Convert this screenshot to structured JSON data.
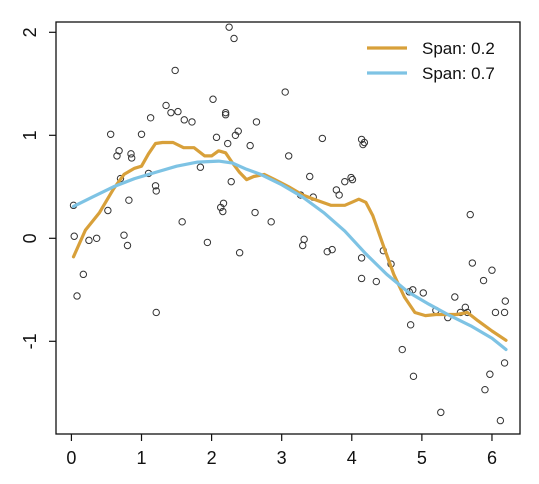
{
  "chart_data": {
    "type": "scatter",
    "title": "",
    "xlabel": "",
    "ylabel": "",
    "xlim": [
      -0.22,
      6.4
    ],
    "ylim": [
      -1.9,
      2.1
    ],
    "x_ticks": [
      0,
      1,
      2,
      3,
      4,
      5,
      6
    ],
    "x_tick_labels": [
      "0",
      "1",
      "2",
      "3",
      "4",
      "5",
      "6"
    ],
    "y_ticks": [
      -1,
      0,
      1,
      2
    ],
    "y_tick_labels": [
      "-1",
      "0",
      "1",
      "2"
    ],
    "grid": false,
    "legend_position": "top-right",
    "points_style": "open-circle",
    "points": [
      [
        0.03,
        0.32
      ],
      [
        0.04,
        0.02
      ],
      [
        0.08,
        -0.56
      ],
      [
        0.17,
        -0.35
      ],
      [
        0.25,
        -0.02
      ],
      [
        0.36,
        0.0
      ],
      [
        0.52,
        0.27
      ],
      [
        0.56,
        1.01
      ],
      [
        0.65,
        0.8
      ],
      [
        0.68,
        0.85
      ],
      [
        0.7,
        0.58
      ],
      [
        0.75,
        0.03
      ],
      [
        0.8,
        -0.07
      ],
      [
        0.82,
        0.37
      ],
      [
        0.85,
        0.82
      ],
      [
        0.86,
        0.78
      ],
      [
        1.0,
        1.01
      ],
      [
        1.1,
        0.63
      ],
      [
        1.13,
        1.17
      ],
      [
        1.2,
        0.51
      ],
      [
        1.21,
        0.46
      ],
      [
        1.21,
        -0.72
      ],
      [
        1.35,
        1.29
      ],
      [
        1.42,
        1.22
      ],
      [
        1.48,
        1.63
      ],
      [
        1.52,
        1.23
      ],
      [
        1.58,
        0.16
      ],
      [
        1.61,
        1.15
      ],
      [
        1.72,
        1.13
      ],
      [
        1.84,
        0.69
      ],
      [
        1.94,
        -0.04
      ],
      [
        2.02,
        1.35
      ],
      [
        2.07,
        0.98
      ],
      [
        2.13,
        0.3
      ],
      [
        2.16,
        0.26
      ],
      [
        2.17,
        0.34
      ],
      [
        2.2,
        1.22
      ],
      [
        2.2,
        1.2
      ],
      [
        2.23,
        0.92
      ],
      [
        2.25,
        2.05
      ],
      [
        2.28,
        0.55
      ],
      [
        2.32,
        1.94
      ],
      [
        2.34,
        1.0
      ],
      [
        2.38,
        1.04
      ],
      [
        2.4,
        -0.14
      ],
      [
        2.55,
        0.9
      ],
      [
        2.62,
        0.25
      ],
      [
        2.64,
        1.13
      ],
      [
        2.85,
        0.16
      ],
      [
        3.05,
        1.42
      ],
      [
        3.1,
        0.8
      ],
      [
        3.27,
        0.42
      ],
      [
        3.3,
        -0.07
      ],
      [
        3.32,
        -0.01
      ],
      [
        3.4,
        0.6
      ],
      [
        3.45,
        0.4
      ],
      [
        3.58,
        0.97
      ],
      [
        3.65,
        -0.13
      ],
      [
        3.72,
        -0.11
      ],
      [
        3.78,
        0.47
      ],
      [
        3.82,
        0.42
      ],
      [
        3.9,
        0.55
      ],
      [
        3.99,
        0.59
      ],
      [
        4.01,
        0.57
      ],
      [
        4.14,
        0.96
      ],
      [
        4.16,
        0.91
      ],
      [
        4.18,
        0.93
      ],
      [
        4.14,
        -0.39
      ],
      [
        4.14,
        -0.19
      ],
      [
        4.35,
        -0.42
      ],
      [
        4.45,
        -0.12
      ],
      [
        4.56,
        -0.25
      ],
      [
        4.72,
        -1.08
      ],
      [
        4.82,
        -0.52
      ],
      [
        4.84,
        -0.84
      ],
      [
        4.87,
        -0.5
      ],
      [
        4.88,
        -1.34
      ],
      [
        5.02,
        -0.53
      ],
      [
        5.2,
        -0.7
      ],
      [
        5.27,
        -1.69
      ],
      [
        5.37,
        -0.77
      ],
      [
        5.47,
        -0.57
      ],
      [
        5.55,
        -0.72
      ],
      [
        5.62,
        -0.67
      ],
      [
        5.65,
        -0.72
      ],
      [
        5.69,
        0.23
      ],
      [
        5.72,
        -0.24
      ],
      [
        5.88,
        -0.41
      ],
      [
        5.9,
        -1.47
      ],
      [
        5.97,
        -1.32
      ],
      [
        6.0,
        -0.31
      ],
      [
        6.05,
        -0.72
      ],
      [
        6.12,
        -1.77
      ],
      [
        6.18,
        -1.21
      ],
      [
        6.18,
        -0.72
      ],
      [
        6.19,
        -0.61
      ]
    ],
    "series": [
      {
        "name": "Span: 0.2",
        "color": "#D8A03A",
        "x": [
          0.03,
          0.2,
          0.4,
          0.6,
          0.75,
          0.9,
          1.0,
          1.1,
          1.2,
          1.3,
          1.45,
          1.6,
          1.75,
          1.9,
          2.0,
          2.1,
          2.2,
          2.3,
          2.4,
          2.5,
          2.6,
          2.75,
          2.9,
          3.1,
          3.3,
          3.5,
          3.7,
          3.9,
          4.0,
          4.1,
          4.2,
          4.3,
          4.45,
          4.6,
          4.75,
          4.9,
          5.05,
          5.2,
          5.35,
          5.5,
          5.65,
          5.8,
          6.0,
          6.2
        ],
        "y": [
          -0.18,
          0.08,
          0.25,
          0.48,
          0.62,
          0.68,
          0.7,
          0.82,
          0.92,
          0.93,
          0.93,
          0.88,
          0.88,
          0.8,
          0.8,
          0.85,
          0.83,
          0.73,
          0.64,
          0.57,
          0.6,
          0.62,
          0.57,
          0.5,
          0.42,
          0.37,
          0.32,
          0.32,
          0.35,
          0.38,
          0.35,
          0.22,
          -0.07,
          -0.35,
          -0.57,
          -0.72,
          -0.75,
          -0.74,
          -0.74,
          -0.74,
          -0.72,
          -0.8,
          -0.9,
          -0.99
        ]
      },
      {
        "name": "Span: 0.7",
        "color": "#7EC3E4",
        "x": [
          0.03,
          0.3,
          0.6,
          0.9,
          1.2,
          1.5,
          1.8,
          2.1,
          2.3,
          2.5,
          2.7,
          3.0,
          3.3,
          3.6,
          3.9,
          4.2,
          4.5,
          4.8,
          5.1,
          5.4,
          5.7,
          6.0,
          6.2
        ],
        "y": [
          0.31,
          0.4,
          0.5,
          0.58,
          0.64,
          0.7,
          0.74,
          0.75,
          0.73,
          0.67,
          0.62,
          0.52,
          0.4,
          0.25,
          0.07,
          -0.15,
          -0.35,
          -0.52,
          -0.64,
          -0.75,
          -0.85,
          -0.97,
          -1.08
        ]
      }
    ]
  }
}
